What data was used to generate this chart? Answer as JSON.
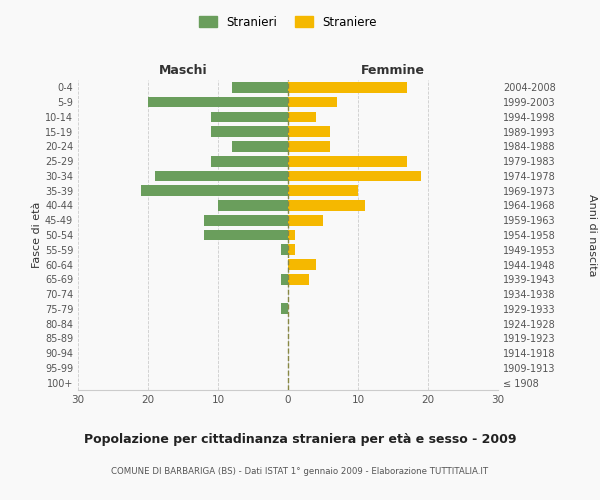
{
  "age_groups": [
    "100+",
    "95-99",
    "90-94",
    "85-89",
    "80-84",
    "75-79",
    "70-74",
    "65-69",
    "60-64",
    "55-59",
    "50-54",
    "45-49",
    "40-44",
    "35-39",
    "30-34",
    "25-29",
    "20-24",
    "15-19",
    "10-14",
    "5-9",
    "0-4"
  ],
  "birth_years": [
    "≤ 1908",
    "1909-1913",
    "1914-1918",
    "1919-1923",
    "1924-1928",
    "1929-1933",
    "1934-1938",
    "1939-1943",
    "1944-1948",
    "1949-1953",
    "1954-1958",
    "1959-1963",
    "1964-1968",
    "1969-1973",
    "1974-1978",
    "1979-1983",
    "1984-1988",
    "1989-1993",
    "1994-1998",
    "1999-2003",
    "2004-2008"
  ],
  "males": [
    0,
    0,
    0,
    0,
    0,
    1,
    0,
    1,
    0,
    1,
    12,
    12,
    10,
    21,
    19,
    11,
    8,
    11,
    11,
    20,
    8
  ],
  "females": [
    0,
    0,
    0,
    0,
    0,
    0,
    0,
    3,
    4,
    1,
    1,
    5,
    11,
    10,
    19,
    17,
    6,
    6,
    4,
    7,
    17
  ],
  "male_color": "#6a9e5c",
  "female_color": "#f5b800",
  "xlabel_left": "Maschi",
  "xlabel_right": "Femmine",
  "ylabel_left": "Fasce di età",
  "ylabel_right": "Anni di nascita",
  "title": "Popolazione per cittadinanza straniera per età e sesso - 2009",
  "subtitle": "COMUNE DI BARBARIGA (BS) - Dati ISTAT 1° gennaio 2009 - Elaborazione TUTTITALIA.IT",
  "legend_male": "Stranieri",
  "legend_female": "Straniere",
  "xlim": 30,
  "background_color": "#f9f9f9",
  "grid_color": "#cccccc",
  "center_line_color": "#888844",
  "tick_label_color": "#555555",
  "axis_label_color": "#333333"
}
